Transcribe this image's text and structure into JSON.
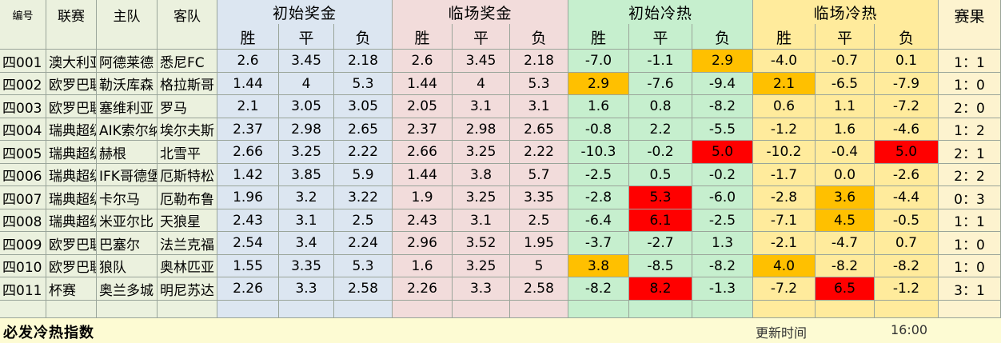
{
  "headers": {
    "id": "编号",
    "league": "联赛",
    "home": "主队",
    "away": "客队",
    "groups": [
      "初始奖金",
      "临场奖金",
      "初始冷热",
      "临场冷热"
    ],
    "sub": [
      "胜",
      "平",
      "负"
    ],
    "result": "赛果"
  },
  "rows": [
    {
      "id": "四001",
      "league": "澳大利亚",
      "home": "阿德莱德",
      "away": "悉尼FC",
      "b_init": [
        "2.6",
        "3.45",
        "2.18"
      ],
      "b_live": [
        "2.6",
        "3.45",
        "2.18"
      ],
      "h_init": [
        "-7.0",
        "-1.1",
        "2.9"
      ],
      "h_live": [
        "-4.0",
        "-0.7",
        "0.1"
      ],
      "result": "1：1",
      "hi_init": [
        null,
        null,
        "orange"
      ],
      "hi_live": [
        null,
        null,
        null
      ]
    },
    {
      "id": "四002",
      "league": "欧罗巴联",
      "home": "勒沃库森",
      "away": "格拉斯哥",
      "b_init": [
        "1.44",
        "4",
        "5.3"
      ],
      "b_live": [
        "1.44",
        "4",
        "5.3"
      ],
      "h_init": [
        "2.9",
        "-7.6",
        "-9.4"
      ],
      "h_live": [
        "2.1",
        "-6.5",
        "-7.9"
      ],
      "result": "1：0",
      "hi_init": [
        "orange",
        null,
        null
      ],
      "hi_live": [
        "orange",
        null,
        null
      ]
    },
    {
      "id": "四003",
      "league": "欧罗巴联",
      "home": "塞维利亚",
      "away": "罗马",
      "b_init": [
        "2.1",
        "3.05",
        "3.05"
      ],
      "b_live": [
        "2.05",
        "3.1",
        "3.1"
      ],
      "h_init": [
        "1.6",
        "0.8",
        "-8.2"
      ],
      "h_live": [
        "0.6",
        "1.1",
        "-7.2"
      ],
      "result": "2：0",
      "hi_init": [
        null,
        null,
        null
      ],
      "hi_live": [
        null,
        null,
        null
      ]
    },
    {
      "id": "四004",
      "league": "瑞典超级",
      "home": "AIK索尔纳",
      "away": "埃尔夫斯",
      "b_init": [
        "2.37",
        "2.98",
        "2.65"
      ],
      "b_live": [
        "2.37",
        "2.98",
        "2.65"
      ],
      "h_init": [
        "-0.8",
        "2.2",
        "-5.5"
      ],
      "h_live": [
        "-1.2",
        "1.6",
        "-4.6"
      ],
      "result": "1：2",
      "hi_init": [
        null,
        null,
        null
      ],
      "hi_live": [
        null,
        null,
        null
      ]
    },
    {
      "id": "四005",
      "league": "瑞典超级",
      "home": "赫根",
      "away": "北雪平",
      "b_init": [
        "2.66",
        "3.25",
        "2.22"
      ],
      "b_live": [
        "2.66",
        "3.25",
        "2.22"
      ],
      "h_init": [
        "-10.3",
        "-0.2",
        "5.0"
      ],
      "h_live": [
        "-10.2",
        "-0.4",
        "5.0"
      ],
      "result": "2：1",
      "hi_init": [
        null,
        null,
        "red"
      ],
      "hi_live": [
        null,
        null,
        "red"
      ]
    },
    {
      "id": "四006",
      "league": "瑞典超级",
      "home": "IFK哥德堡",
      "away": "厄斯特松",
      "b_init": [
        "1.42",
        "3.85",
        "5.9"
      ],
      "b_live": [
        "1.44",
        "3.8",
        "5.7"
      ],
      "h_init": [
        "-2.5",
        "0.5",
        "-0.2"
      ],
      "h_live": [
        "-1.7",
        "0.0",
        "-2.6"
      ],
      "result": "2：2",
      "hi_init": [
        null,
        null,
        null
      ],
      "hi_live": [
        null,
        null,
        null
      ]
    },
    {
      "id": "四007",
      "league": "瑞典超级",
      "home": "卡尔马",
      "away": "厄勒布鲁",
      "b_init": [
        "1.96",
        "3.2",
        "3.22"
      ],
      "b_live": [
        "1.9",
        "3.25",
        "3.35"
      ],
      "h_init": [
        "-2.8",
        "5.3",
        "-6.0"
      ],
      "h_live": [
        "-2.8",
        "3.6",
        "-4.4"
      ],
      "result": "0：3",
      "hi_init": [
        null,
        "red",
        null
      ],
      "hi_live": [
        null,
        "orange",
        null
      ]
    },
    {
      "id": "四008",
      "league": "瑞典超级",
      "home": "米亚尔比",
      "away": "天狼星",
      "b_init": [
        "2.43",
        "3.1",
        "2.5"
      ],
      "b_live": [
        "2.43",
        "3.1",
        "2.5"
      ],
      "h_init": [
        "-6.4",
        "6.1",
        "-2.5"
      ],
      "h_live": [
        "-7.1",
        "4.5",
        "-0.5"
      ],
      "result": "1：1",
      "hi_init": [
        null,
        "red",
        null
      ],
      "hi_live": [
        null,
        "orange",
        null
      ]
    },
    {
      "id": "四009",
      "league": "欧罗巴联",
      "home": "巴塞尔",
      "away": "法兰克福",
      "b_init": [
        "2.54",
        "3.4",
        "2.24"
      ],
      "b_live": [
        "2.96",
        "3.52",
        "1.95"
      ],
      "h_init": [
        "-3.7",
        "-2.7",
        "1.3"
      ],
      "h_live": [
        "-2.1",
        "-4.7",
        "0.7"
      ],
      "result": "1：0",
      "hi_init": [
        null,
        null,
        null
      ],
      "hi_live": [
        null,
        null,
        null
      ]
    },
    {
      "id": "四010",
      "league": "欧罗巴联",
      "home": "狼队",
      "away": "奥林匹亚",
      "b_init": [
        "1.55",
        "3.35",
        "5.3"
      ],
      "b_live": [
        "1.6",
        "3.25",
        "5"
      ],
      "h_init": [
        "3.8",
        "-8.5",
        "-8.2"
      ],
      "h_live": [
        "4.0",
        "-8.2",
        "-8.2"
      ],
      "result": "1：0",
      "hi_init": [
        "orange",
        null,
        null
      ],
      "hi_live": [
        "orange",
        null,
        null
      ]
    },
    {
      "id": "四011",
      "league": "杯赛",
      "home": "奥兰多城",
      "away": "明尼苏达",
      "b_init": [
        "2.26",
        "3.3",
        "2.58"
      ],
      "b_live": [
        "2.26",
        "3.3",
        "2.58"
      ],
      "h_init": [
        "-8.2",
        "8.2",
        "-1.3"
      ],
      "h_live": [
        "-7.2",
        "6.5",
        "-1.2"
      ],
      "result": "3：1",
      "hi_init": [
        null,
        "red",
        null
      ],
      "hi_live": [
        null,
        "red",
        null
      ]
    }
  ],
  "colors": {
    "orange": "#ffc000",
    "red": "#ff0000"
  },
  "footer": {
    "title": "必发冷热指数",
    "update_label": "更新时间",
    "time": "16:00"
  }
}
